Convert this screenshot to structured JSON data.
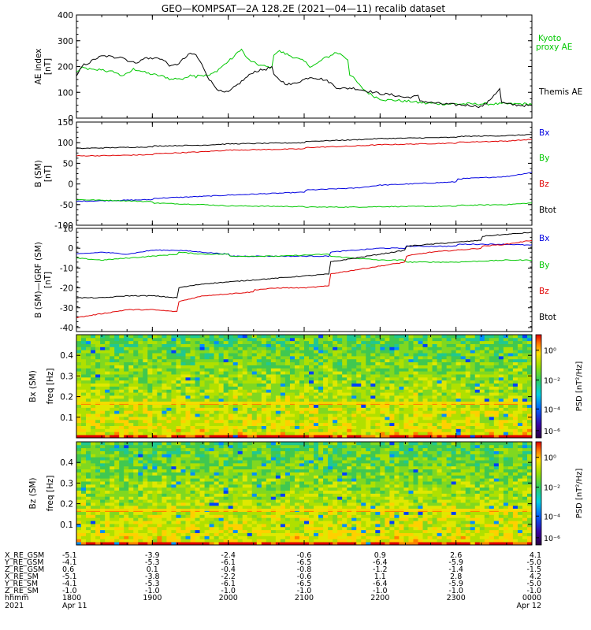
{
  "title": "GEO—KOMPSAT—2A 128.2E (2021—04—11) recalib dataset",
  "colors": {
    "black": "#000000",
    "green": "#00c800",
    "blue": "#0000e0",
    "red": "#e00000"
  },
  "chart_data": [
    {
      "type": "line",
      "ylabel": [
        "AE index",
        "[nT]"
      ],
      "ylim": [
        0,
        400
      ],
      "yticks": [
        0,
        100,
        200,
        300,
        400
      ],
      "series": [
        {
          "name": "Kyoto proxy AE",
          "color": "#00c800",
          "x": [
            1800,
            1805,
            1810,
            1815,
            1820,
            1825,
            1830,
            1835,
            1840,
            1845,
            1850,
            1855,
            1860,
            1870,
            1875,
            1880,
            1885,
            1890,
            1895,
            1900,
            1905,
            1910,
            1915,
            1920,
            1925,
            1930,
            1935,
            1940,
            1945,
            1950,
            1955,
            1960,
            1965,
            1970,
            1975,
            1980,
            1985,
            1990,
            1995,
            2000,
            2005,
            2010,
            2015,
            2020,
            2025,
            2030,
            2040,
            2050,
            2055,
            2060,
            2065,
            2070,
            2075,
            2080,
            2085,
            2090,
            2095,
            2100,
            2105,
            2110,
            2115,
            2120,
            2125,
            2130,
            2135,
            2140,
            2145,
            2150,
            2155,
            2160,
            2165,
            2170,
            2175,
            2180,
            2185,
            2190,
            2195,
            2200,
            2210,
            2220,
            2230,
            2240,
            2250,
            2260,
            2270,
            2280,
            2290,
            2300,
            2310,
            2320,
            2330,
            2340,
            2350,
            2360,
            2370,
            2380,
            2390,
            2400
          ],
          "y": [
            180,
            195,
            190,
            185,
            190,
            180,
            180,
            165,
            170,
            190,
            185,
            175,
            170,
            160,
            150,
            155,
            150,
            170,
            160,
            150,
            290,
            250,
            200,
            190,
            180,
            175,
            170,
            165,
            165,
            180,
            200,
            220,
            240,
            270,
            230,
            215,
            205,
            200,
            195,
            205,
            225,
            245,
            215,
            210,
            225,
            230,
            260,
            240,
            230,
            220,
            200,
            210,
            230,
            240,
            255,
            245,
            225,
            210,
            215,
            220,
            235,
            245,
            215,
            190,
            175,
            150,
            120,
            100,
            85,
            75,
            70,
            70,
            68,
            65,
            65,
            60,
            60,
            58,
            58,
            58,
            55,
            58,
            55,
            55,
            55,
            55,
            55,
            60,
            55,
            55,
            55,
            55,
            55,
            55,
            55,
            55,
            55,
            45
          ]
        },
        {
          "name": "Themis AE",
          "color": "#000000",
          "x": [
            1800,
            1805,
            1810,
            1815,
            1820,
            1825,
            1830,
            1835,
            1840,
            1845,
            1850,
            1855,
            1860,
            1865,
            1870,
            1875,
            1880,
            1885,
            1890,
            1895,
            1900,
            1905,
            1910,
            1915,
            1920,
            1925,
            1930,
            1935,
            1940,
            1945,
            1950,
            1955,
            1960,
            1965,
            1970,
            1975,
            1980,
            1990,
            1995,
            2000,
            2005,
            2010,
            2015,
            2020,
            2025,
            2030,
            2035,
            2040,
            2045,
            2050,
            2055,
            2060,
            2065,
            2070,
            2075,
            2080,
            2085,
            2090,
            2095,
            2100,
            2105,
            2110,
            2115,
            2120,
            2130,
            2140,
            2150,
            2160,
            2170,
            2180,
            2190,
            2200,
            2210,
            2220,
            2230,
            2240,
            2250,
            2260,
            2270,
            2280,
            2285,
            2290,
            2295,
            2300,
            2305,
            2310,
            2315,
            2320,
            2330,
            2340,
            2350,
            2360,
            2370,
            2380,
            2390,
            2400
          ],
          "y": [
            160,
            205,
            215,
            230,
            240,
            240,
            235,
            240,
            225,
            215,
            220,
            235,
            230,
            235,
            220,
            200,
            210,
            230,
            250,
            245,
            235,
            260,
            300,
            320,
            310,
            290,
            270,
            240,
            200,
            150,
            120,
            100,
            100,
            120,
            140,
            160,
            180,
            190,
            200,
            205,
            215,
            225,
            220,
            210,
            200,
            185,
            170,
            150,
            135,
            130,
            140,
            150,
            160,
            155,
            150,
            140,
            120,
            115,
            115,
            135,
            150,
            145,
            140,
            130,
            120,
            115,
            105,
            95,
            90,
            80,
            85,
            75,
            75,
            70,
            70,
            60,
            55,
            52,
            50,
            45,
            60,
            90,
            115,
            110,
            80,
            95,
            105,
            95,
            70,
            55,
            50,
            48,
            45,
            45,
            40,
            42
          ]
        }
      ]
    },
    {
      "type": "line",
      "ylabel": [
        "B (SM)",
        "[nT]"
      ],
      "ylim": [
        -100,
        150
      ],
      "yticks": [
        -100,
        -50,
        0,
        50,
        100,
        150
      ],
      "series": [
        {
          "name": "Bx",
          "color": "#0000e0",
          "x": [
            1800,
            1830,
            1860,
            1900,
            1940,
            2000,
            2060,
            2100,
            2140,
            2200,
            2260,
            2300,
            2340,
            2400
          ],
          "y": [
            -42,
            -40,
            -38,
            -35,
            -30,
            -27,
            -20,
            -15,
            -10,
            -3,
            5,
            12,
            18,
            28
          ]
        },
        {
          "name": "By",
          "color": "#00c800",
          "x": [
            1800,
            1830,
            1860,
            1900,
            1940,
            2000,
            2060,
            2100,
            2140,
            2200,
            2260,
            2300,
            2340,
            2400
          ],
          "y": [
            -38,
            -40,
            -43,
            -46,
            -50,
            -53,
            -55,
            -56,
            -56,
            -55,
            -54,
            -52,
            -50,
            -46
          ]
        },
        {
          "name": "Bz",
          "color": "#e00000",
          "x": [
            1800,
            1830,
            1860,
            1900,
            1940,
            2000,
            2060,
            2100,
            2140,
            2200,
            2260,
            2300,
            2340,
            2400
          ],
          "y": [
            68,
            69,
            71,
            73,
            78,
            82,
            85,
            88,
            92,
            95,
            99,
            101,
            104,
            108
          ]
        },
        {
          "name": "Btot",
          "color": "#000000",
          "x": [
            1800,
            1830,
            1860,
            1900,
            1940,
            2000,
            2060,
            2100,
            2140,
            2200,
            2260,
            2300,
            2340,
            2400
          ],
          "y": [
            86,
            88,
            90,
            92,
            94,
            97,
            100,
            103,
            107,
            110,
            113,
            115,
            117,
            120
          ]
        }
      ]
    },
    {
      "type": "line",
      "ylabel": [
        "B (SM)—IGRF (SM)",
        "[nT]"
      ],
      "ylim": [
        -42,
        10
      ],
      "yticks": [
        -40,
        -30,
        -20,
        -10,
        0,
        10
      ],
      "series": [
        {
          "name": "Bx",
          "color": "#0000e0",
          "x": [
            1800,
            1820,
            1840,
            1860,
            1880,
            1900,
            1920,
            1940,
            1960,
            2000,
            2040,
            2080,
            2100,
            2120,
            2140,
            2160,
            2180,
            2200,
            2230,
            2260,
            2300,
            2340,
            2380,
            2400
          ],
          "y": [
            -3,
            -2,
            -3,
            -1,
            -1,
            0,
            -1,
            -2,
            -3,
            -4,
            -4,
            -4,
            -3,
            -2,
            -1,
            0,
            0,
            1,
            1,
            1,
            2,
            2,
            1,
            2
          ]
        },
        {
          "name": "By",
          "color": "#00c800",
          "x": [
            1800,
            1820,
            1840,
            1860,
            1880,
            1900,
            1920,
            1940,
            1960,
            2000,
            2040,
            2080,
            2100,
            2120,
            2140,
            2160,
            2180,
            2200,
            2230,
            2260,
            2300,
            2340,
            2380,
            2400
          ],
          "y": [
            -5,
            -6,
            -5,
            -4,
            -3,
            -3,
            -2,
            -3,
            -3,
            -4,
            -4,
            -3,
            -3,
            -4,
            -5,
            -6,
            -6,
            -7,
            -7,
            -7,
            -7,
            -6,
            -6,
            -5
          ]
        },
        {
          "name": "Bz",
          "color": "#e00000",
          "x": [
            1800,
            1820,
            1840,
            1860,
            1880,
            1900,
            1920,
            1940,
            1960,
            1980,
            2000,
            2020,
            2040,
            2060,
            2080,
            2100,
            2120,
            2140,
            2160,
            2180,
            2200,
            2220,
            2240,
            2260,
            2280,
            2300,
            2320,
            2340,
            2360,
            2380,
            2400
          ],
          "y": [
            -35,
            -33,
            -31,
            -31,
            -32,
            -30,
            -27,
            -24,
            -23,
            -22,
            -21,
            -21,
            -20,
            -20,
            -19,
            -16,
            -13,
            -11,
            -9,
            -7,
            -5,
            -4,
            -2,
            -1,
            0,
            1,
            1,
            2,
            4,
            5,
            8
          ]
        },
        {
          "name": "Btot",
          "color": "#000000",
          "x": [
            1800,
            1820,
            1840,
            1860,
            1880,
            1900,
            1920,
            1940,
            1960,
            1980,
            2000,
            2020,
            2040,
            2060,
            2080,
            2100,
            2120,
            2140,
            2160,
            2180,
            2200,
            2220,
            2240,
            2260,
            2280,
            2300,
            2320,
            2340,
            2360,
            2380,
            2400
          ],
          "y": [
            -25,
            -25,
            -24,
            -24,
            -25,
            -23,
            -20,
            -18,
            -17,
            -16,
            -16,
            -16,
            -15,
            -14,
            -13,
            -10,
            -7,
            -5,
            -3,
            -1,
            0,
            1,
            2,
            3,
            4,
            5,
            6,
            7,
            8,
            9,
            10
          ]
        }
      ]
    },
    {
      "type": "heatmap",
      "ylabel": [
        "Bx (SM)",
        "freq [Hz]"
      ],
      "ylim": [
        0,
        0.5
      ],
      "yticks": [
        0.1,
        0.2,
        0.3,
        0.4
      ],
      "ridge_freq": 0.17,
      "colorbar": {
        "label": "PSD [nT²/Hz]",
        "ticks": [
          "10⁰",
          "10⁻²",
          "10⁻⁴",
          "10⁻⁶"
        ]
      }
    },
    {
      "type": "heatmap",
      "ylabel": [
        "Bz (SM)",
        "freq [Hz]"
      ],
      "ylim": [
        0,
        0.5
      ],
      "yticks": [
        0.1,
        0.2,
        0.3,
        0.4
      ],
      "ridge_freq": 0.17,
      "colorbar": {
        "label": "PSD [nT²/Hz]",
        "ticks": [
          "10⁰",
          "10⁻²",
          "10⁻⁴",
          "10⁻⁶"
        ]
      }
    }
  ],
  "legends": [
    [
      {
        "text": "Kyoto",
        "color": "#00c800"
      },
      {
        "text": "proxy AE",
        "color": "#00c800"
      },
      {
        "text": "Themis AE",
        "color": "#000000"
      }
    ],
    [
      {
        "text": "Bx",
        "color": "#0000e0"
      },
      {
        "text": "By",
        "color": "#00c800"
      },
      {
        "text": "Bz",
        "color": "#e00000"
      },
      {
        "text": "Btot",
        "color": "#000000"
      }
    ],
    [
      {
        "text": "Bx",
        "color": "#0000e0"
      },
      {
        "text": "By",
        "color": "#00c800"
      },
      {
        "text": "Bz",
        "color": "#e00000"
      },
      {
        "text": "Btot",
        "color": "#000000"
      }
    ]
  ],
  "x_axis": {
    "range": [
      1800,
      2400
    ],
    "tick_positions": [
      1800,
      1900,
      2000,
      2100,
      2200,
      2300,
      2400
    ]
  },
  "ephemeris": {
    "labels": [
      "X_RE_GSM",
      "Y_RE_GSM",
      "Z_RE_GSM",
      "X_RE_SM",
      "Y_RE_SM",
      "Z_RE_SM",
      "hhmm",
      "2021"
    ],
    "columns": [
      [
        "-5.1",
        "-4.1",
        "0.6",
        "-5.1",
        "-4.1",
        "-1.0",
        "1800",
        "Apr 11"
      ],
      [
        "-3.9",
        "-5.3",
        "0.1",
        "-3.8",
        "-5.3",
        "-1.0",
        "1900",
        ""
      ],
      [
        "-2.4",
        "-6.1",
        "-0.4",
        "-2.2",
        "-6.1",
        "-1.0",
        "2000",
        ""
      ],
      [
        "-0.6",
        "-6.5",
        "-0.8",
        "-0.6",
        "-6.5",
        "-1.0",
        "2100",
        ""
      ],
      [
        "0.9",
        "-6.4",
        "-1.2",
        "1.1",
        "-6.4",
        "-1.0",
        "2200",
        ""
      ],
      [
        "2.6",
        "-5.9",
        "-1.4",
        "2.8",
        "-5.9",
        "-1.0",
        "2300",
        ""
      ],
      [
        "4.1",
        "-5.0",
        "-1.5",
        "4.2",
        "-5.0",
        "-1.0",
        "0000",
        "Apr 12"
      ]
    ]
  }
}
